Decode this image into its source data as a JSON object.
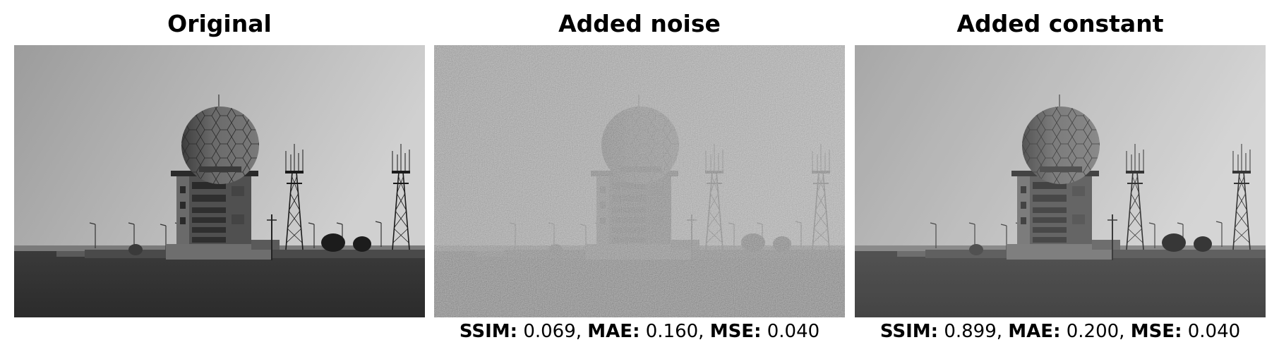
{
  "panels": [
    {
      "title": "Original",
      "image": "radar-dome-station-grayscale",
      "metrics": null
    },
    {
      "title": "Added noise",
      "image": "radar-dome-station-grayscale-noisy",
      "metrics": {
        "ssim_label": "SSIM",
        "ssim": "0.069",
        "mae_label": "MAE",
        "mae": "0.160",
        "mse_label": "MSE",
        "mse": "0.040"
      }
    },
    {
      "title": "Added constant",
      "image": "radar-dome-station-grayscale-brightened",
      "metrics": {
        "ssim_label": "SSIM",
        "ssim": "0.899",
        "mae_label": "MAE",
        "mae": "0.200",
        "mse_label": "MSE",
        "mse": "0.040"
      }
    }
  ]
}
